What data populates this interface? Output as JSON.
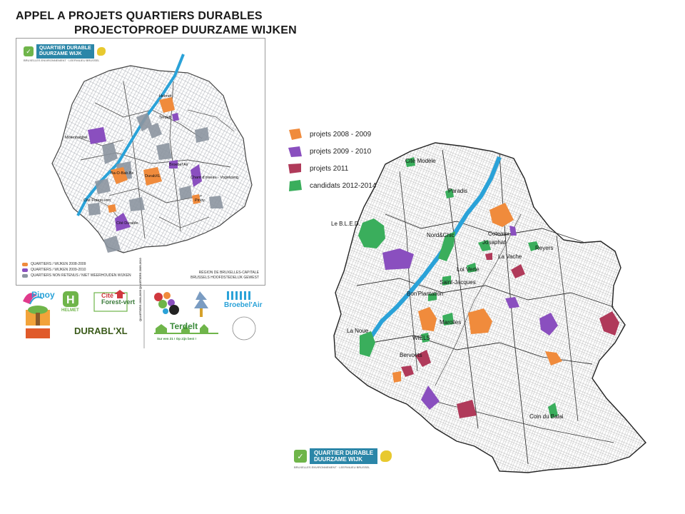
{
  "title": {
    "fr": "APPEL A PROJETS QUARTIERS DURABLES",
    "nl": "PROJECTOPROEP DUURZAME WIJKEN"
  },
  "brand": {
    "line1": "QUARTIER DURABLE",
    "line2": "DUURZAME WIJK",
    "tagline": "BRUXELLES ENVIRONNEMENT · LEEFMILIEU BRUSSEL",
    "color_teal": "#2b86a8",
    "color_green": "#6fb54a"
  },
  "colors": {
    "p2008": "#f08b3c",
    "p2009": "#8a4fbf",
    "p2011": "#b03a5a",
    "cand": "#3aae5c",
    "not_retained": "#8c95a0",
    "canal": "#2aa2d8"
  },
  "left_map": {
    "legend": [
      {
        "label": "QUARTIERS / WIJKEN 2008-2009",
        "color_key": "p2008"
      },
      {
        "label": "QUARTIERS / WIJKEN 2009-2010",
        "color_key": "p2009"
      },
      {
        "label": "QUARTIERS NON RETENUS / NIET WEERHOUDEN WIJKEN",
        "color_key": "not_retained"
      }
    ],
    "region_note_1": "RÉGION DE BRUXELLES-CAPITALE",
    "region_note_2": "BRUSSELS HOOFDSTEDELIJK GEWEST",
    "labels": {
      "helmet": "Helmet",
      "terdelt": "Terdelt",
      "molenbabbel": "Molenbabbel",
      "bravvo": "BrOeBEL",
      "b2b": "Ba-O-Bab.Bx",
      "durablxl": "DurabXL",
      "broebelair": "Broebel'Air",
      "chantdoiseau": "Chant d'oiseau - Vogelzang",
      "pinoy": "Pinoy",
      "citeforest": "Cité Forest-vert",
      "citydurable": "Cité Durable"
    }
  },
  "project_logos": {
    "pinoy": "Pinoy",
    "helmet": "HELMET",
    "citeforest_1": "Cité",
    "citeforest_2": "Forest-vert",
    "broebelair": "Broebel'Air",
    "durablxl": "DURABL'XL",
    "terdelt": "Terdelt",
    "terdelt_sub": "Sur een 21 !          Op zijn best !",
    "quartiers_band": "QUARTIERS 2008-2009 QUARTIERS 2009-2010"
  },
  "legend": [
    {
      "label": "projets 2008 - 2009",
      "color_key": "p2008"
    },
    {
      "label": "projets 2009 - 2010",
      "color_key": "p2009"
    },
    {
      "label": "projets 2011",
      "color_key": "p2011"
    },
    {
      "label": "candidats 2012-2014",
      "color_key": "cand"
    }
  ],
  "right_map_labels": {
    "citemodele": "Cité Modèle",
    "paradis": "Paradis",
    "lebled": "Le B.L.E.D.",
    "nordchic": "Nord&Chic",
    "coteaux": "Coteaux-",
    "coteaux2": "Josaphat",
    "latreille": "La Vache",
    "reyers": "Reyers",
    "loiverte": "Loi Verte",
    "saintjacques": "Saint-Jacques",
    "bonplantation": "Bon'Plantation",
    "midi": "Midi",
    "marolles": "Marolles",
    "lanoue": "La Noue",
    "wiels": "WIELS",
    "bervoets": "Bervoets",
    "coindumais": "Coin du Balai"
  }
}
